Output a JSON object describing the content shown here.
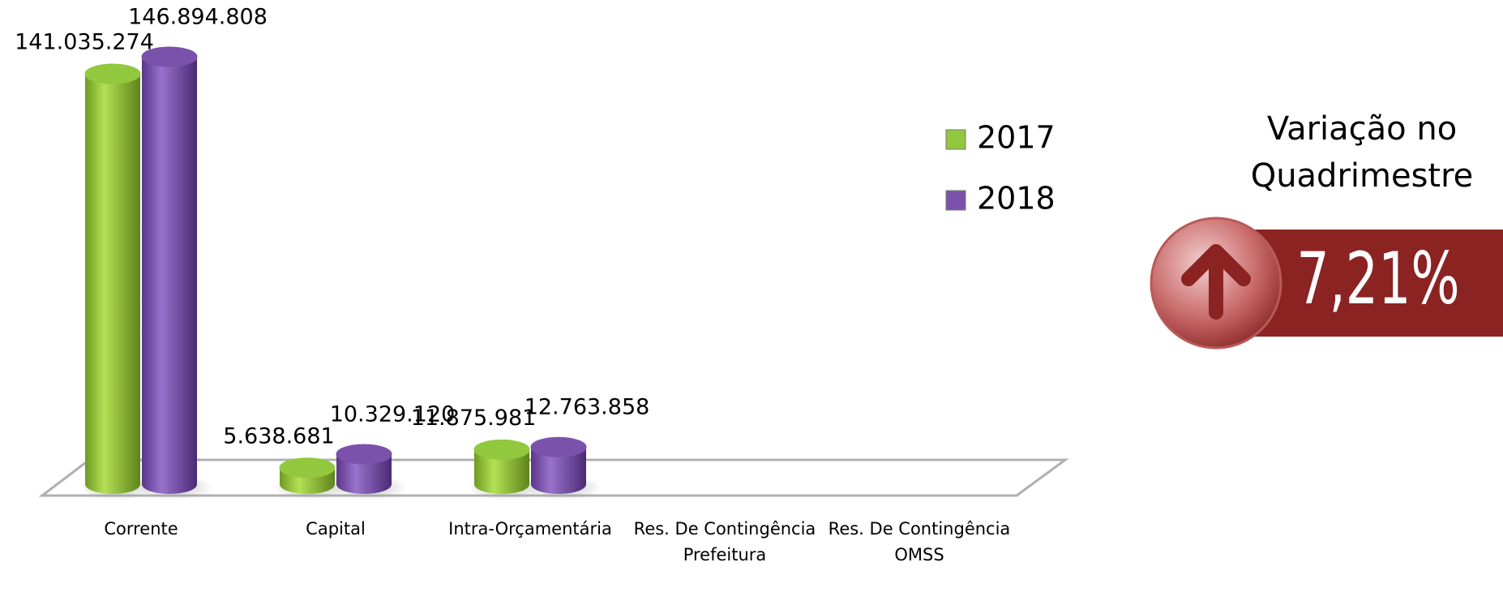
{
  "chart_data": {
    "type": "bar",
    "categories": [
      "Corrente",
      "Capital",
      "Intra-Orçamentária",
      "Res. De Contingência Prefeitura",
      "Res. De Contingência OMSS"
    ],
    "series": [
      {
        "name": "2017",
        "color": "#92c83e",
        "values": [
          141035274,
          5638681,
          11875981,
          null,
          null
        ],
        "value_labels": [
          "141.035.274",
          "5.638.681",
          "11.875.981",
          null,
          null
        ]
      },
      {
        "name": "2018",
        "color": "#7b52ab",
        "values": [
          146894808,
          10329120,
          12763858,
          null,
          null
        ],
        "value_labels": [
          "146.894.808",
          "10.329.120",
          "12.763.858",
          null,
          null
        ]
      }
    ],
    "legend": "right"
  },
  "kpi": {
    "label": "Variação no Quadrimestre",
    "value": 7.21,
    "value_label": "7,21%"
  }
}
